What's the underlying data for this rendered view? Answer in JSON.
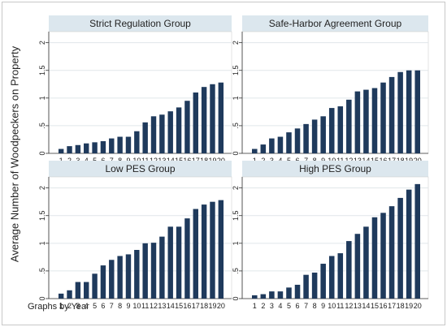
{
  "figure": {
    "ylabel": "Average Number of Woodpeckers on Property",
    "footer": "Graphs by Year"
  },
  "colors": {
    "bar": "#1f3a5c",
    "title_strip": "#dce7ee",
    "grid": "#e1e6ea",
    "axis": "#333333",
    "plot_border": "#d0d0d0"
  },
  "chart_data": [
    {
      "type": "bar",
      "title": "Strict Regulation Group",
      "categories": [
        "1",
        "2",
        "3",
        "4",
        "5",
        "6",
        "7",
        "8",
        "9",
        "10",
        "11",
        "12",
        "13",
        "14",
        "15",
        "16",
        "17",
        "18",
        "19",
        "20"
      ],
      "values": [
        0.08,
        0.13,
        0.15,
        0.18,
        0.2,
        0.22,
        0.27,
        0.3,
        0.3,
        0.4,
        0.56,
        0.67,
        0.7,
        0.76,
        0.83,
        0.95,
        1.1,
        1.2,
        1.25,
        1.28
      ],
      "ylim": [
        0,
        2.2
      ],
      "yticks": [
        "0",
        ".5",
        "1",
        "1.5",
        "2"
      ],
      "ytick_values": [
        0,
        0.5,
        1,
        1.5,
        2
      ],
      "grid": true
    },
    {
      "type": "bar",
      "title": "Safe-Harbor Agreement Group",
      "categories": [
        "1",
        "2",
        "3",
        "4",
        "5",
        "6",
        "7",
        "8",
        "9",
        "10",
        "11",
        "12",
        "13",
        "14",
        "15",
        "16",
        "17",
        "18",
        "19",
        "20"
      ],
      "values": [
        0.08,
        0.16,
        0.27,
        0.3,
        0.38,
        0.45,
        0.53,
        0.61,
        0.67,
        0.82,
        0.85,
        0.97,
        1.12,
        1.15,
        1.18,
        1.28,
        1.38,
        1.47,
        1.5,
        1.5
      ],
      "ylim": [
        0,
        2.2
      ],
      "yticks": [
        "0",
        ".5",
        "1",
        "1.5",
        "2"
      ],
      "ytick_values": [
        0,
        0.5,
        1,
        1.5,
        2
      ],
      "grid": true
    },
    {
      "type": "bar",
      "title": "Low PES Group",
      "categories": [
        "1",
        "2",
        "3",
        "4",
        "5",
        "6",
        "7",
        "8",
        "9",
        "10",
        "11",
        "12",
        "13",
        "14",
        "15",
        "16",
        "17",
        "18",
        "19",
        "20"
      ],
      "values": [
        0.09,
        0.15,
        0.3,
        0.3,
        0.45,
        0.6,
        0.7,
        0.77,
        0.8,
        0.88,
        1.0,
        1.01,
        1.12,
        1.3,
        1.3,
        1.45,
        1.62,
        1.7,
        1.75,
        1.78
      ],
      "ylim": [
        0,
        2.2
      ],
      "yticks": [
        "0",
        ".5",
        "1",
        "1.5",
        "2"
      ],
      "ytick_values": [
        0,
        0.5,
        1,
        1.5,
        2
      ],
      "grid": true
    },
    {
      "type": "bar",
      "title": "High PES Group",
      "categories": [
        "1",
        "2",
        "3",
        "4",
        "5",
        "6",
        "7",
        "8",
        "9",
        "10",
        "11",
        "12",
        "13",
        "14",
        "15",
        "16",
        "17",
        "18",
        "19",
        "20"
      ],
      "values": [
        0.06,
        0.08,
        0.13,
        0.13,
        0.2,
        0.25,
        0.43,
        0.47,
        0.63,
        0.77,
        0.82,
        1.04,
        1.17,
        1.3,
        1.47,
        1.55,
        1.67,
        1.82,
        1.97,
        2.07
      ],
      "ylim": [
        0,
        2.2
      ],
      "yticks": [
        "0",
        ".5",
        "1",
        "1.5",
        "2"
      ],
      "ytick_values": [
        0,
        0.5,
        1,
        1.5,
        2
      ],
      "grid": true
    }
  ]
}
